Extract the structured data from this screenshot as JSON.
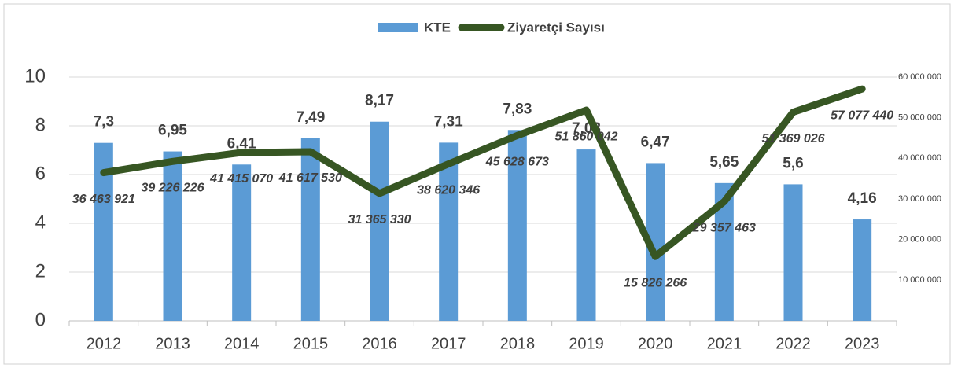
{
  "chart_data": {
    "type": "bar_line",
    "categories": [
      "2012",
      "2013",
      "2014",
      "2015",
      "2016",
      "2017",
      "2018",
      "2019",
      "2020",
      "2021",
      "2022",
      "2023"
    ],
    "series": [
      {
        "name": "KTE",
        "type": "bar",
        "color": "#5b9bd5",
        "values": [
          7.3,
          6.95,
          6.41,
          7.49,
          8.17,
          7.31,
          7.83,
          7.03,
          6.47,
          5.65,
          5.6,
          4.16
        ],
        "value_labels": [
          "7,3",
          "6,95",
          "6,41",
          "7,49",
          "8,17",
          "7,31",
          "7,83",
          "7,03",
          "6,47",
          "5,65",
          "5,6",
          "4,16"
        ]
      },
      {
        "name": "Ziyaretçi Sayısı",
        "type": "line",
        "axis": "y2",
        "color": "#375623",
        "values": [
          36463921,
          39226226,
          41415070,
          41617530,
          31365330,
          38620346,
          45628673,
          51860042,
          15826266,
          29357463,
          51369026,
          57077440
        ],
        "value_labels": [
          "36 463 921",
          "39 226 226",
          "41 415 070",
          "41 617 530",
          "31 365 330",
          "38 620 346",
          "45 628 673",
          "51 860 042",
          "15 826 266",
          "29 357 463",
          "51 369 026",
          "57 077 440"
        ]
      }
    ],
    "ylim": [
      0,
      10
    ],
    "yticks": [
      0,
      2,
      4,
      6,
      8,
      10
    ],
    "y2lim": [
      0,
      60000000
    ],
    "y2ticks": [
      {
        "value": 10000000,
        "label": "10 000 000"
      },
      {
        "value": 20000000,
        "label": "20 000 000"
      },
      {
        "value": 30000000,
        "label": "30 000 000"
      },
      {
        "value": 40000000,
        "label": "40 000 000"
      },
      {
        "value": 50000000,
        "label": "50 000 000"
      },
      {
        "value": 60000000,
        "label": "60 000 000"
      }
    ],
    "grid": true,
    "legend": "top"
  }
}
